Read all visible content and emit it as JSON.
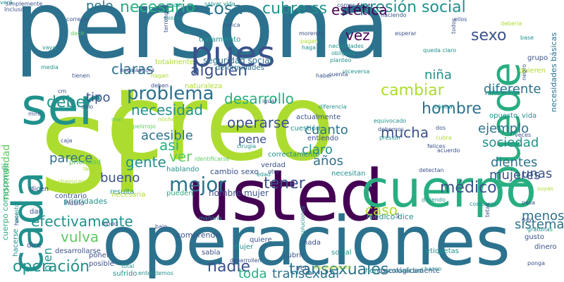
{
  "palette": {
    "dark_purple": "#440154",
    "indigo": "#3b528b",
    "teal_blue": "#2c728e",
    "teal": "#21918c",
    "green_teal": "#28ae80",
    "green": "#5ec962",
    "lime": "#addc30",
    "yellow": "#fde725"
  },
  "words": [
    {
      "text": "persona",
      "color": "#2c728e"
    },
    {
      "text": "creo",
      "color": "#addc30"
    },
    {
      "text": "si",
      "color": "#addc30"
    },
    {
      "text": "usted",
      "color": "#440154"
    },
    {
      "text": "operaciones",
      "color": "#2c728e"
    },
    {
      "text": "cuerpo",
      "color": "#28ae80"
    },
    {
      "text": "ser",
      "color": "#21918c"
    },
    {
      "text": "cada",
      "color": "#21918c"
    },
    {
      "text": "puede",
      "color": "#28ae80"
    },
    {
      "text": "pues",
      "color": "#3b528b"
    },
    {
      "text": "mejor",
      "color": "#2c728e"
    },
    {
      "text": "operación",
      "color": "#21918c"
    },
    {
      "text": "transexuales",
      "color": "#2c728e"
    },
    {
      "text": "nadie",
      "color": "#3b528b"
    },
    {
      "text": "problema",
      "color": "#2c728e"
    },
    {
      "text": "cambiar",
      "color": "#addc30"
    },
    {
      "text": "hombre",
      "color": "#2c728e"
    },
    {
      "text": "médico",
      "color": "#3b528b"
    },
    {
      "text": "presión social",
      "color": "#21918c"
    },
    {
      "text": "necesario",
      "color": "#28ae80"
    },
    {
      "text": "cosa",
      "color": "#2c728e"
    },
    {
      "text": "cubre ss",
      "color": "#21918c"
    },
    {
      "text": "estética",
      "color": "#440154"
    },
    {
      "text": "alguien",
      "color": "#3b528b"
    },
    {
      "text": "sexo",
      "color": "#3b528b"
    },
    {
      "text": "vez",
      "color": "#440154"
    },
    {
      "text": "claras",
      "color": "#2c728e"
    },
    {
      "text": "debe",
      "color": "#21918c"
    },
    {
      "text": "necesidad",
      "color": "#21918c"
    },
    {
      "text": "desarrollo",
      "color": "#28ae80"
    },
    {
      "text": "tener",
      "color": "#3b528b"
    },
    {
      "text": "gente",
      "color": "#21918c"
    },
    {
      "text": "acesible",
      "color": "#2c728e"
    },
    {
      "text": "ver",
      "color": "#5ec962"
    },
    {
      "text": "así",
      "color": "#28ae80"
    },
    {
      "text": "operarse",
      "color": "#3b528b"
    },
    {
      "text": "cuanto",
      "color": "#2c728e"
    },
    {
      "text": "claro",
      "color": "#21918c"
    },
    {
      "text": "años",
      "color": "#2c728e"
    },
    {
      "text": "mucha",
      "color": "#3b528b"
    },
    {
      "text": "ejemplo",
      "color": "#2c728e"
    },
    {
      "text": "sociedad",
      "color": "#21918c"
    },
    {
      "text": "dientes",
      "color": "#2c728e"
    },
    {
      "text": "mujeres",
      "color": "#3b528b"
    },
    {
      "text": "unas",
      "color": "#3b528b"
    },
    {
      "text": "menos",
      "color": "#2c728e"
    },
    {
      "text": "sistema",
      "color": "#2c728e"
    },
    {
      "text": "efectivamente",
      "color": "#21918c"
    },
    {
      "text": "caso",
      "color": "#addc30"
    },
    {
      "text": "vulva",
      "color": "#5ec962"
    },
    {
      "text": "toda",
      "color": "#28ae80"
    },
    {
      "text": "transexual",
      "color": "#2c728e"
    },
    {
      "text": "bueno",
      "color": "#3b528b"
    },
    {
      "text": "parece",
      "color": "#2c728e"
    },
    {
      "text": "tipo",
      "color": "#3b528b"
    },
    {
      "text": "niña",
      "color": "#21918c"
    },
    {
      "text": "diferente",
      "color": "#2c728e"
    },
    {
      "text": "pelo",
      "color": "#2c728e"
    },
    {
      "text": "pene",
      "color": "#3b528b"
    },
    {
      "text": "bien",
      "color": "#21918c"
    },
    {
      "text": "normalidad",
      "color": "#5ec962"
    },
    {
      "text": "cuerpo corresponde",
      "color": "#28ae80"
    },
    {
      "text": "necesidades básicas",
      "color": "#2c728e"
    },
    {
      "text": "seguridad social",
      "color": "#2c728e"
    },
    {
      "text": "deformidades",
      "color": "#2c728e"
    },
    {
      "text": "tratamiento",
      "color": "#21918c"
    },
    {
      "text": "hombre mujer",
      "color": "#3b528b"
    },
    {
      "text": "cambio sexo",
      "color": "#3b528b"
    },
    {
      "text": "médico dice",
      "color": "#21918c"
    },
    {
      "text": "comprende",
      "color": "#3b528b"
    },
    {
      "text": "prioridades",
      "color": "#21918c"
    },
    {
      "text": "necesaria",
      "color": "#addc30"
    },
    {
      "text": "totalmente",
      "color": "#addc30"
    },
    {
      "text": "naturaleza",
      "color": "#addc30"
    },
    {
      "text": "actualmente",
      "color": "#3b528b"
    },
    {
      "text": "cuestión",
      "color": "#21918c"
    },
    {
      "text": "entiendo",
      "color": "#3b528b"
    },
    {
      "text": "verdad",
      "color": "#3b528b"
    },
    {
      "text": "necesitan",
      "color": "#21918c"
    },
    {
      "text": "correctamente",
      "color": "#21918c"
    },
    {
      "text": "hablando",
      "color": "#21918c"
    },
    {
      "text": "pueden",
      "color": "#28ae80"
    },
    {
      "text": "resulta",
      "color": "#21918c"
    },
    {
      "text": "prioridad",
      "color": "#5ec962"
    },
    {
      "text": "hablo",
      "color": "#3b528b"
    },
    {
      "text": "contrario",
      "color": "#3b528b"
    },
    {
      "text": "dicen",
      "color": "#3b528b"
    },
    {
      "text": "dar",
      "color": "#3b528b"
    },
    {
      "text": "niño niña",
      "color": "#21918c"
    },
    {
      "text": "opuesto",
      "color": "#21918c"
    },
    {
      "text": "vida",
      "color": "#21918c"
    },
    {
      "text": "grupo",
      "color": "#3b528b"
    },
    {
      "text": "quieren",
      "color": "#addc30"
    },
    {
      "text": "gusto",
      "color": "#3b528b"
    },
    {
      "text": "dinero",
      "color": "#3b528b"
    },
    {
      "text": "etiquetas",
      "color": "#21918c"
    },
    {
      "text": "nada",
      "color": "#3b528b"
    },
    {
      "text": "social",
      "color": "#21918c"
    },
    {
      "text": "cubrir",
      "color": "#3b528b"
    },
    {
      "text": "homosexualidad",
      "color": "#21918c"
    },
    {
      "text": "psicológicamente",
      "color": "#3b528b"
    },
    {
      "text": "veo",
      "color": "#3b528b"
    },
    {
      "text": "sufrido",
      "color": "#21918c"
    },
    {
      "text": "poner",
      "color": "#3b528b"
    },
    {
      "text": "posible",
      "color": "#3b528b"
    },
    {
      "text": "quiere",
      "color": "#3b528b"
    },
    {
      "text": "mujer",
      "color": "#21918c"
    },
    {
      "text": "sabía",
      "color": "#3b528b"
    },
    {
      "text": "desarrollarse",
      "color": "#3b528b"
    },
    {
      "text": "hacerse",
      "color": "#21918c"
    },
    {
      "text": "dice",
      "color": "#3b528b"
    },
    {
      "text": "salvar vida",
      "color": "#21918c"
    },
    {
      "text": "correcto",
      "color": "#3b528b"
    },
    {
      "text": "simplemente",
      "color": "#3b528b"
    },
    {
      "text": "Incluso",
      "color": "#3b528b"
    },
    {
      "text": "mismo",
      "color": "#21918c"
    },
    {
      "text": "ve",
      "color": "#21918c"
    },
    {
      "text": "poder",
      "color": "#21918c"
    },
    {
      "text": "comer",
      "color": "#3b528b"
    },
    {
      "text": "haciendo",
      "color": "#3b528b"
    },
    {
      "text": "ellos",
      "color": "#3b528b"
    },
    {
      "text": "debería",
      "color": "#addc30"
    },
    {
      "text": "base",
      "color": "#21918c"
    },
    {
      "text": "esperar",
      "color": "#3b528b"
    },
    {
      "text": "nunca",
      "color": "#3b528b"
    },
    {
      "text": "morenos",
      "color": "#3b528b"
    },
    {
      "text": "pagan",
      "color": "#addc30"
    },
    {
      "text": "haga",
      "color": "#21918c"
    },
    {
      "text": "necesidades",
      "color": "#21918c"
    },
    {
      "text": "obligado",
      "color": "#21918c"
    },
    {
      "text": "planteo",
      "color": "#21918c"
    },
    {
      "text": "todos",
      "color": "#3b528b"
    },
    {
      "text": "queda claro",
      "color": "#21918c"
    },
    {
      "text": "encajar",
      "color": "#3b528b"
    },
    {
      "text": "decir",
      "color": "#5ec962"
    },
    {
      "text": "vaya",
      "color": "#21918c"
    },
    {
      "text": "terreno",
      "color": "#3b528b"
    },
    {
      "text": "ahora",
      "color": "#3b528b"
    },
    {
      "text": "media",
      "color": "#21918c"
    },
    {
      "text": "tienen",
      "color": "#3b528b"
    },
    {
      "text": "hagan",
      "color": "#addc30"
    },
    {
      "text": "deben",
      "color": "#3b528b"
    },
    {
      "text": "haber",
      "color": "#3b528b"
    },
    {
      "text": "cuenta",
      "color": "#3b528b"
    },
    {
      "text": "viceversa",
      "color": "#21918c"
    },
    {
      "text": "negro",
      "color": "#3b528b"
    },
    {
      "text": "sólo",
      "color": "#3b528b"
    },
    {
      "text": "cm",
      "color": "#3b528b"
    },
    {
      "text": "mire",
      "color": "#3b528b"
    },
    {
      "text": "igual",
      "color": "#3b528b"
    },
    {
      "text": "diferencia",
      "color": "#21918c"
    },
    {
      "text": "básica",
      "color": "#21918c"
    },
    {
      "text": "mal",
      "color": "#5ec962"
    },
    {
      "text": "michelín",
      "color": "#addc30"
    },
    {
      "text": "pelirrojo",
      "color": "#5ec962"
    },
    {
      "text": "cirugía",
      "color": "#21918c"
    },
    {
      "text": "equivocado",
      "color": "#21918c"
    },
    {
      "text": "debemos",
      "color": "#3b528b"
    },
    {
      "text": "presión",
      "color": "#21918c"
    },
    {
      "text": "dos",
      "color": "#3b528b"
    },
    {
      "text": "cubra",
      "color": "#addc30"
    },
    {
      "text": "felices",
      "color": "#3b528b"
    },
    {
      "text": "acuerdo",
      "color": "#3b528b"
    },
    {
      "text": "veces",
      "color": "#3b528b"
    },
    {
      "text": "caja",
      "color": "#3b528b"
    },
    {
      "text": "largo",
      "color": "#addc30"
    },
    {
      "text": "identificarse",
      "color": "#5ec962"
    },
    {
      "text": "otro",
      "color": "#3b528b"
    },
    {
      "text": "edad",
      "color": "#21918c"
    },
    {
      "text": "chapuceras",
      "color": "#addc30"
    },
    {
      "text": "detectan",
      "color": "#3b528b"
    },
    {
      "text": "suyas",
      "color": "#addc30"
    },
    {
      "text": "ss",
      "color": "#3b528b"
    },
    {
      "text": "diciendo",
      "color": "#21918c"
    },
    {
      "text": "costearse",
      "color": "#21918c"
    },
    {
      "text": "pasa",
      "color": "#3b528b"
    },
    {
      "text": "gay",
      "color": "#3b528b"
    },
    {
      "text": "gratuitas",
      "color": "#21918c"
    },
    {
      "text": "ponga",
      "color": "#3b528b"
    },
    {
      "text": "tetas",
      "color": "#3b528b"
    },
    {
      "text": "modo",
      "color": "#3b528b"
    },
    {
      "text": "mañana",
      "color": "#21918c"
    },
    {
      "text": "bajo",
      "color": "#3b528b"
    },
    {
      "text": "soluciones",
      "color": "#21918c"
    },
    {
      "text": "hace",
      "color": "#3b528b"
    },
    {
      "text": "puesto",
      "color": "#21918c"
    },
    {
      "text": "total",
      "color": "#21918c"
    },
    {
      "text": "entendemos",
      "color": "#21918c"
    },
    {
      "text": "desarrollen",
      "color": "#3b528b"
    },
    {
      "text": "sinceramente",
      "color": "#addc30"
    },
    {
      "text": "hacen",
      "color": "#21918c"
    },
    {
      "text": "verá",
      "color": "#21918c"
    }
  ]
}
